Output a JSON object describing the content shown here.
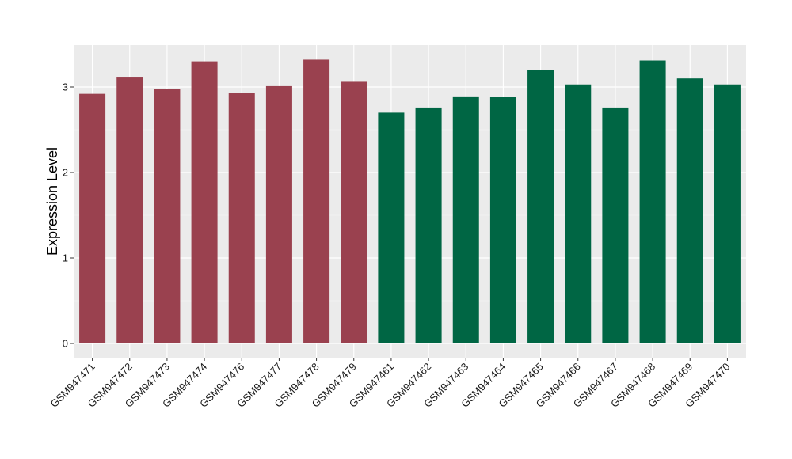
{
  "chart_data": {
    "type": "bar",
    "title": "",
    "xlabel": "",
    "ylabel": "Expression Level",
    "ylim": [
      0,
      3.5
    ],
    "yticks": [
      0,
      1,
      2,
      3
    ],
    "grid": true,
    "legend": "none",
    "colors": {
      "panel_background": "#ebebeb",
      "grid_major": "#ffffff",
      "group_1": "#9a414f",
      "group_2": "#006644"
    },
    "categories": [
      "GSM947471",
      "GSM947472",
      "GSM947473",
      "GSM947474",
      "GSM947476",
      "GSM947477",
      "GSM947478",
      "GSM947479",
      "GSM947461",
      "GSM947462",
      "GSM947463",
      "GSM947464",
      "GSM947465",
      "GSM947466",
      "GSM947467",
      "GSM947468",
      "GSM947469",
      "GSM947470"
    ],
    "values": [
      2.92,
      3.12,
      2.98,
      3.3,
      2.93,
      3.01,
      3.32,
      3.07,
      2.7,
      2.76,
      2.89,
      2.88,
      3.2,
      3.03,
      2.76,
      3.31,
      3.1,
      3.03
    ],
    "bar_groups": [
      "group_1",
      "group_1",
      "group_1",
      "group_1",
      "group_1",
      "group_1",
      "group_1",
      "group_1",
      "group_2",
      "group_2",
      "group_2",
      "group_2",
      "group_2",
      "group_2",
      "group_2",
      "group_2",
      "group_2",
      "group_2"
    ]
  }
}
